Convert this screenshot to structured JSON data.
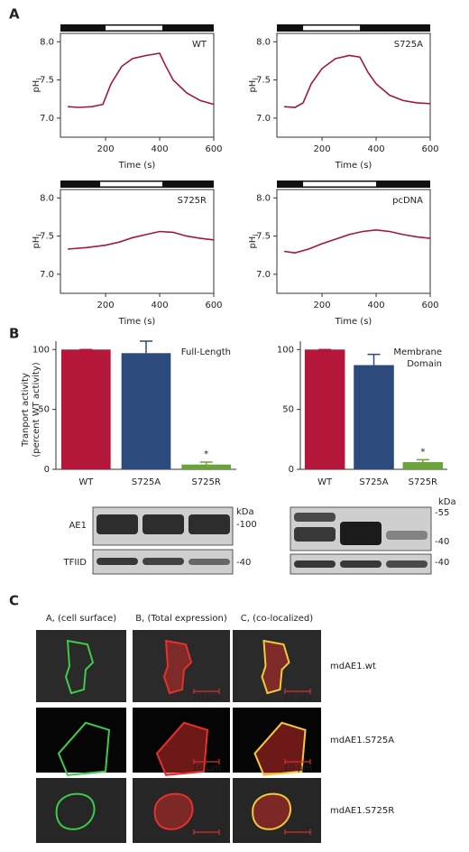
{
  "panel_labels": {
    "a": "A",
    "b": "B",
    "c": "C"
  },
  "ph_charts": [
    {
      "type": "line",
      "label": "WT",
      "ylabel": "pH",
      "ylabel_sub": "i",
      "xlabel": "Time (s)",
      "xlim": [
        33,
        600
      ],
      "ylim": [
        6.75,
        8.11
      ],
      "xticks": [
        200,
        400,
        600
      ],
      "yticks": [
        {
          "value": 7,
          "label": "7.0"
        },
        {
          "value": 7.5,
          "label": "7.5"
        },
        {
          "value": 8,
          "label": "8.0"
        }
      ],
      "solution_bar": [
        200,
        410
      ],
      "color": "#a3173a",
      "x": [
        60,
        100,
        150,
        190,
        220,
        260,
        300,
        350,
        400,
        420,
        450,
        500,
        550,
        600
      ],
      "values": [
        7.15,
        7.14,
        7.15,
        7.18,
        7.45,
        7.68,
        7.78,
        7.82,
        7.85,
        7.7,
        7.5,
        7.33,
        7.23,
        7.18
      ]
    },
    {
      "type": "line",
      "label": "S725A",
      "ylabel": "pH",
      "ylabel_sub": "i",
      "xlabel": "Time (s)",
      "xlim": [
        33,
        600
      ],
      "ylim": [
        6.75,
        8.11
      ],
      "xticks": [
        200,
        400,
        600
      ],
      "yticks": [
        {
          "value": 7,
          "label": "7.0"
        },
        {
          "value": 7.5,
          "label": "7.5"
        },
        {
          "value": 8,
          "label": "8.0"
        }
      ],
      "solution_bar": [
        130,
        340
      ],
      "color": "#a3173a",
      "x": [
        60,
        100,
        130,
        160,
        200,
        250,
        300,
        340,
        370,
        400,
        450,
        500,
        550,
        600
      ],
      "values": [
        7.15,
        7.14,
        7.2,
        7.45,
        7.65,
        7.78,
        7.82,
        7.8,
        7.6,
        7.45,
        7.3,
        7.23,
        7.2,
        7.19
      ]
    },
    {
      "type": "line",
      "label": "S725R",
      "ylabel": "pH",
      "ylabel_sub": "i",
      "xlabel": "Time (s)",
      "xlim": [
        33,
        600
      ],
      "ylim": [
        6.75,
        8.11
      ],
      "xticks": [
        200,
        400,
        600
      ],
      "yticks": [
        {
          "value": 7,
          "label": "7.0"
        },
        {
          "value": 7.5,
          "label": "7.5"
        },
        {
          "value": 8,
          "label": "8.0"
        }
      ],
      "solution_bar": [
        180,
        410
      ],
      "color": "#a3173a",
      "x": [
        60,
        130,
        200,
        250,
        300,
        350,
        400,
        450,
        500,
        550,
        600
      ],
      "values": [
        7.33,
        7.35,
        7.38,
        7.42,
        7.48,
        7.52,
        7.56,
        7.55,
        7.5,
        7.47,
        7.45
      ]
    },
    {
      "type": "line",
      "label": "pcDNA",
      "ylabel": "pH",
      "ylabel_sub": "i",
      "xlabel": "Time (s)",
      "xlim": [
        33,
        600
      ],
      "ylim": [
        6.75,
        8.11
      ],
      "xticks": [
        200,
        400,
        600
      ],
      "yticks": [
        {
          "value": 7,
          "label": "7.0"
        },
        {
          "value": 7.5,
          "label": "7.5"
        },
        {
          "value": 8,
          "label": "8.0"
        }
      ],
      "solution_bar": [
        130,
        400
      ],
      "color": "#a3173a",
      "x": [
        60,
        100,
        150,
        200,
        250,
        300,
        350,
        400,
        450,
        500,
        550,
        600
      ],
      "values": [
        7.3,
        7.28,
        7.33,
        7.4,
        7.46,
        7.52,
        7.56,
        7.58,
        7.56,
        7.52,
        7.49,
        7.47
      ]
    }
  ],
  "bar_charts": [
    {
      "type": "bar",
      "title": [
        "Full-Length"
      ],
      "ylabel": [
        "Tranport activity",
        "(percent WT activity)"
      ],
      "categories": [
        "WT",
        "S725A",
        "S725R"
      ],
      "values": [
        100,
        97,
        4
      ],
      "errors": [
        0,
        10,
        2
      ],
      "colors": [
        "#b5173b",
        "#2c4a7c",
        "#6aa33a"
      ],
      "ylim": [
        0,
        107
      ],
      "yticks": [
        0,
        50,
        100
      ],
      "annotation": "*"
    },
    {
      "type": "bar",
      "title": [
        "Membrane",
        "Domain"
      ],
      "categories": [
        "WT",
        "S725A",
        "S725R"
      ],
      "values": [
        100,
        87,
        6
      ],
      "errors": [
        0,
        9,
        2
      ],
      "colors": [
        "#b5173b",
        "#2c4a7c",
        "#6aa33a"
      ],
      "ylim": [
        0,
        107
      ],
      "yticks": [
        0,
        50,
        100
      ],
      "annotation": "*"
    }
  ],
  "blots": {
    "rows": [
      "AE1",
      "TFIID"
    ],
    "left_markers": [
      "kDa",
      "-100",
      "-40"
    ],
    "right_markers": [
      "kDa",
      "-55",
      "-40",
      "-40"
    ]
  },
  "micrographs": {
    "columns": [
      "A, (cell surface)",
      "B, (Total expression)",
      "C, (co-localized)"
    ],
    "rows": [
      "mdAE1.wt",
      "mdAE1.S725A",
      "mdAE1.S725R"
    ],
    "scale_bar": "10 µm"
  }
}
